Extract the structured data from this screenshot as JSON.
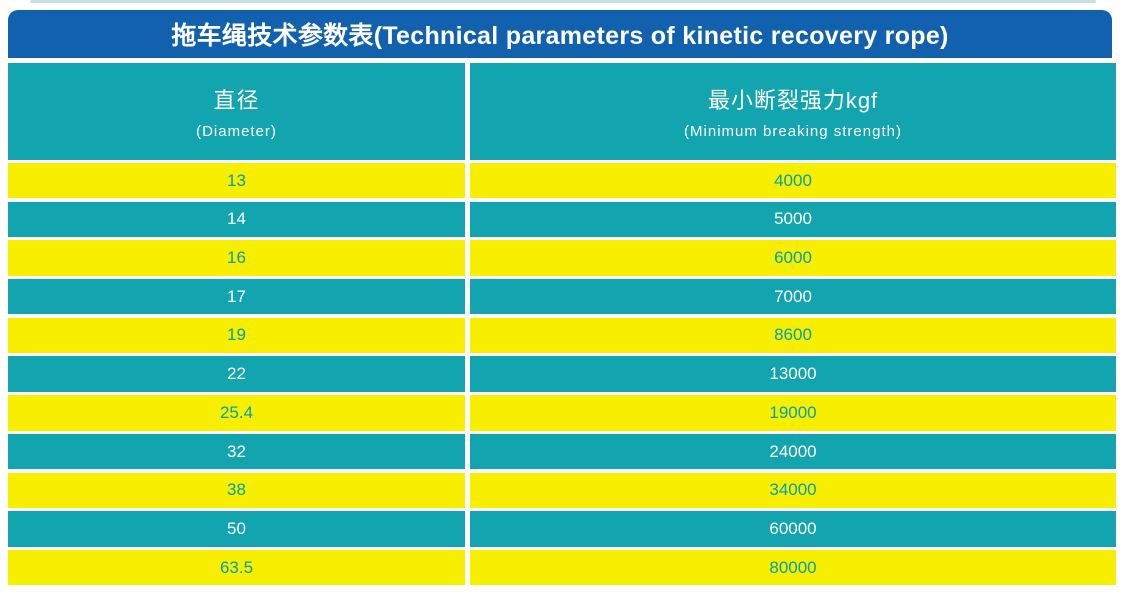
{
  "title": "拖车绳技术参数表(Technical parameters of kinetic recovery rope)",
  "table": {
    "header": {
      "col1_zh": "直径",
      "col1_en": "(Diameter)",
      "col2_zh": "最小断裂强力kgf",
      "col2_en": "(Minimum breaking strength)"
    },
    "rows": [
      {
        "diameter": "13",
        "strength": "4000"
      },
      {
        "diameter": "14",
        "strength": "5000"
      },
      {
        "diameter": "16",
        "strength": "6000"
      },
      {
        "diameter": "17",
        "strength": "7000"
      },
      {
        "diameter": "19",
        "strength": "8600"
      },
      {
        "diameter": "22",
        "strength": "13000"
      },
      {
        "diameter": "25.4",
        "strength": "19000"
      },
      {
        "diameter": "32",
        "strength": "24000"
      },
      {
        "diameter": "38",
        "strength": "34000"
      },
      {
        "diameter": "50",
        "strength": "60000"
      },
      {
        "diameter": "63.5",
        "strength": "80000"
      }
    ]
  },
  "colors": {
    "title_bar_blue": "#1261ae",
    "row_teal": "#12a5b0",
    "row_yellow": "#f7ee00",
    "text_on_yellow": "#00a3ae",
    "text_on_teal": "#ffffff"
  },
  "chart_data": {
    "type": "table",
    "title": "拖车绳技术参数表(Technical parameters of kinetic recovery rope)",
    "columns": [
      "直径 (Diameter)",
      "最小断裂强力kgf (Minimum breaking strength)"
    ],
    "rows": [
      [
        13,
        4000
      ],
      [
        14,
        5000
      ],
      [
        16,
        6000
      ],
      [
        17,
        7000
      ],
      [
        19,
        8600
      ],
      [
        22,
        13000
      ],
      [
        25.4,
        19000
      ],
      [
        32,
        24000
      ],
      [
        38,
        34000
      ],
      [
        50,
        60000
      ],
      [
        63.5,
        80000
      ]
    ],
    "layout": "alternating yellow/teal striped rows, teal header row, blue title bar with rounded top corners"
  }
}
